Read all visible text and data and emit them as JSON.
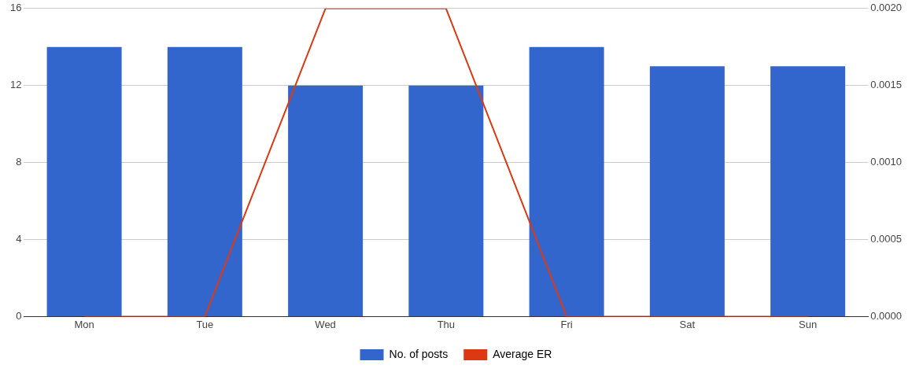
{
  "chart_data": {
    "type": "bar",
    "categories": [
      "Mon",
      "Tue",
      "Wed",
      "Thu",
      "Fri",
      "Sat",
      "Sun"
    ],
    "series": [
      {
        "name": "No. of posts",
        "color": "#3366cc",
        "values": [
          14,
          14,
          12,
          12,
          14,
          13,
          13
        ]
      },
      {
        "name": "Average ER",
        "type": "line",
        "axis": "y2",
        "color": "#dc3912",
        "values": [
          0,
          0,
          0.002,
          0.002,
          0,
          0,
          0
        ]
      }
    ],
    "ylim": [
      0,
      16
    ],
    "yticks": [
      0,
      4,
      8,
      12,
      16
    ],
    "y2lim": [
      0,
      0.002
    ],
    "y2ticks": [
      {
        "value": 0,
        "label": "0.0000"
      },
      {
        "value": 0.0005,
        "label": "0.0005"
      },
      {
        "value": 0.001,
        "label": "0.0010"
      },
      {
        "value": 0.0015,
        "label": "0.0015"
      },
      {
        "value": 0.002,
        "label": "0.0020"
      }
    ],
    "grid": "y",
    "legend": "bottom",
    "marker": "none",
    "line_style": "solid"
  }
}
